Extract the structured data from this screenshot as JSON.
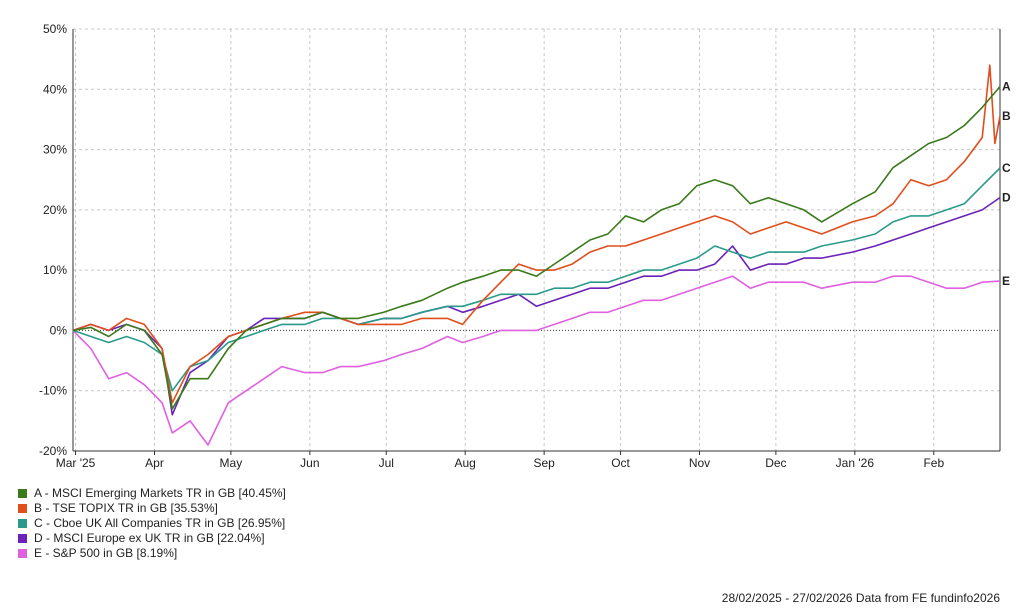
{
  "chart_data": {
    "type": "line",
    "y_unit": "%",
    "ylim": [
      -20,
      50
    ],
    "y_ticks": [
      "50%",
      "40%",
      "30%",
      "20%",
      "10%",
      "0%",
      "-10%",
      "-20%"
    ],
    "x_ticks": [
      "Mar '25",
      "Apr",
      "May",
      "Jun",
      "Jul",
      "Aug",
      "Sep",
      "Oct",
      "Nov",
      "Dec",
      "Jan '26",
      "Feb"
    ],
    "grid": true,
    "legend_position": "bottom-left",
    "series": [
      {
        "name": "A - MSCI Emerging Markets TR in GB [40.45%]",
        "end_label": "A",
        "color": "#3a7a1a",
        "points": [
          [
            "2025-02-28",
            0
          ],
          [
            "2025-03-07",
            0.5
          ],
          [
            "2025-03-14",
            -1
          ],
          [
            "2025-03-21",
            1
          ],
          [
            "2025-03-28",
            0
          ],
          [
            "2025-04-04",
            -4
          ],
          [
            "2025-04-08",
            -13
          ],
          [
            "2025-04-15",
            -8
          ],
          [
            "2025-04-22",
            -8
          ],
          [
            "2025-04-30",
            -3
          ],
          [
            "2025-05-07",
            0
          ],
          [
            "2025-05-14",
            1
          ],
          [
            "2025-05-21",
            2
          ],
          [
            "2025-05-30",
            2
          ],
          [
            "2025-06-06",
            3
          ],
          [
            "2025-06-13",
            2
          ],
          [
            "2025-06-20",
            2
          ],
          [
            "2025-06-30",
            3
          ],
          [
            "2025-07-07",
            4
          ],
          [
            "2025-07-15",
            5
          ],
          [
            "2025-07-25",
            7
          ],
          [
            "2025-07-31",
            8
          ],
          [
            "2025-08-08",
            9
          ],
          [
            "2025-08-15",
            10
          ],
          [
            "2025-08-22",
            10
          ],
          [
            "2025-08-29",
            9
          ],
          [
            "2025-09-05",
            11
          ],
          [
            "2025-09-12",
            13
          ],
          [
            "2025-09-19",
            15
          ],
          [
            "2025-09-26",
            16
          ],
          [
            "2025-10-03",
            19
          ],
          [
            "2025-10-10",
            18
          ],
          [
            "2025-10-17",
            20
          ],
          [
            "2025-10-24",
            21
          ],
          [
            "2025-10-31",
            24
          ],
          [
            "2025-11-07",
            25
          ],
          [
            "2025-11-14",
            24
          ],
          [
            "2025-11-21",
            21
          ],
          [
            "2025-11-28",
            22
          ],
          [
            "2025-12-05",
            21
          ],
          [
            "2025-12-12",
            20
          ],
          [
            "2025-12-19",
            18
          ],
          [
            "2025-12-31",
            21
          ],
          [
            "2026-01-09",
            23
          ],
          [
            "2026-01-16",
            27
          ],
          [
            "2026-01-23",
            29
          ],
          [
            "2026-01-30",
            31
          ],
          [
            "2026-02-06",
            32
          ],
          [
            "2026-02-13",
            34
          ],
          [
            "2026-02-20",
            37
          ],
          [
            "2026-02-27",
            40.45
          ]
        ]
      },
      {
        "name": "B - TSE TOPIX TR in GB [35.53%]",
        "end_label": "B",
        "color": "#e04e1c",
        "points": [
          [
            "2025-02-28",
            0
          ],
          [
            "2025-03-07",
            1
          ],
          [
            "2025-03-14",
            0
          ],
          [
            "2025-03-21",
            2
          ],
          [
            "2025-03-28",
            1
          ],
          [
            "2025-04-04",
            -3
          ],
          [
            "2025-04-08",
            -12
          ],
          [
            "2025-04-15",
            -6
          ],
          [
            "2025-04-22",
            -4
          ],
          [
            "2025-04-30",
            -1
          ],
          [
            "2025-05-07",
            0
          ],
          [
            "2025-05-14",
            1
          ],
          [
            "2025-05-21",
            2
          ],
          [
            "2025-05-30",
            3
          ],
          [
            "2025-06-06",
            3
          ],
          [
            "2025-06-13",
            2
          ],
          [
            "2025-06-20",
            1
          ],
          [
            "2025-06-30",
            1
          ],
          [
            "2025-07-07",
            1
          ],
          [
            "2025-07-15",
            2
          ],
          [
            "2025-07-25",
            2
          ],
          [
            "2025-07-31",
            1
          ],
          [
            "2025-08-08",
            5
          ],
          [
            "2025-08-15",
            8
          ],
          [
            "2025-08-22",
            11
          ],
          [
            "2025-08-29",
            10
          ],
          [
            "2025-09-05",
            10
          ],
          [
            "2025-09-12",
            11
          ],
          [
            "2025-09-19",
            13
          ],
          [
            "2025-09-26",
            14
          ],
          [
            "2025-10-03",
            14
          ],
          [
            "2025-10-10",
            15
          ],
          [
            "2025-10-17",
            16
          ],
          [
            "2025-10-24",
            17
          ],
          [
            "2025-10-31",
            18
          ],
          [
            "2025-11-07",
            19
          ],
          [
            "2025-11-14",
            18
          ],
          [
            "2025-11-21",
            16
          ],
          [
            "2025-11-28",
            17
          ],
          [
            "2025-12-05",
            18
          ],
          [
            "2025-12-12",
            17
          ],
          [
            "2025-12-19",
            16
          ],
          [
            "2025-12-31",
            18
          ],
          [
            "2026-01-09",
            19
          ],
          [
            "2026-01-16",
            21
          ],
          [
            "2026-01-23",
            25
          ],
          [
            "2026-01-30",
            24
          ],
          [
            "2026-02-06",
            25
          ],
          [
            "2026-02-13",
            28
          ],
          [
            "2026-02-20",
            32
          ],
          [
            "2026-02-23",
            44
          ],
          [
            "2026-02-25",
            31
          ],
          [
            "2026-02-27",
            35.53
          ]
        ]
      },
      {
        "name": "C - Cboe UK All Companies TR in GB [26.95%]",
        "end_label": "C",
        "color": "#2a9a8a",
        "points": [
          [
            "2025-02-28",
            0
          ],
          [
            "2025-03-07",
            -1
          ],
          [
            "2025-03-14",
            -2
          ],
          [
            "2025-03-21",
            -1
          ],
          [
            "2025-03-28",
            -2
          ],
          [
            "2025-04-04",
            -4
          ],
          [
            "2025-04-08",
            -10
          ],
          [
            "2025-04-15",
            -6
          ],
          [
            "2025-04-22",
            -5
          ],
          [
            "2025-04-30",
            -2
          ],
          [
            "2025-05-07",
            -1
          ],
          [
            "2025-05-14",
            0
          ],
          [
            "2025-05-21",
            1
          ],
          [
            "2025-05-30",
            1
          ],
          [
            "2025-06-06",
            2
          ],
          [
            "2025-06-13",
            2
          ],
          [
            "2025-06-20",
            1
          ],
          [
            "2025-06-30",
            2
          ],
          [
            "2025-07-07",
            2
          ],
          [
            "2025-07-15",
            3
          ],
          [
            "2025-07-25",
            4
          ],
          [
            "2025-07-31",
            4
          ],
          [
            "2025-08-08",
            5
          ],
          [
            "2025-08-15",
            6
          ],
          [
            "2025-08-22",
            6
          ],
          [
            "2025-08-29",
            6
          ],
          [
            "2025-09-05",
            7
          ],
          [
            "2025-09-12",
            7
          ],
          [
            "2025-09-19",
            8
          ],
          [
            "2025-09-26",
            8
          ],
          [
            "2025-10-03",
            9
          ],
          [
            "2025-10-10",
            10
          ],
          [
            "2025-10-17",
            10
          ],
          [
            "2025-10-24",
            11
          ],
          [
            "2025-10-31",
            12
          ],
          [
            "2025-11-07",
            14
          ],
          [
            "2025-11-14",
            13
          ],
          [
            "2025-11-21",
            12
          ],
          [
            "2025-11-28",
            13
          ],
          [
            "2025-12-05",
            13
          ],
          [
            "2025-12-12",
            13
          ],
          [
            "2025-12-19",
            14
          ],
          [
            "2025-12-31",
            15
          ],
          [
            "2026-01-09",
            16
          ],
          [
            "2026-01-16",
            18
          ],
          [
            "2026-01-23",
            19
          ],
          [
            "2026-01-30",
            19
          ],
          [
            "2026-02-06",
            20
          ],
          [
            "2026-02-13",
            21
          ],
          [
            "2026-02-20",
            24
          ],
          [
            "2026-02-27",
            26.95
          ]
        ]
      },
      {
        "name": "D - MSCI Europe ex UK TR in GB [22.04%]",
        "end_label": "D",
        "color": "#6a22b8",
        "points": [
          [
            "2025-02-28",
            0
          ],
          [
            "2025-03-07",
            1
          ],
          [
            "2025-03-14",
            0
          ],
          [
            "2025-03-21",
            1
          ],
          [
            "2025-03-28",
            0
          ],
          [
            "2025-04-04",
            -3
          ],
          [
            "2025-04-08",
            -14
          ],
          [
            "2025-04-15",
            -7
          ],
          [
            "2025-04-22",
            -5
          ],
          [
            "2025-04-30",
            -1
          ],
          [
            "2025-05-07",
            0
          ],
          [
            "2025-05-14",
            2
          ],
          [
            "2025-05-21",
            2
          ],
          [
            "2025-05-30",
            2
          ],
          [
            "2025-06-06",
            3
          ],
          [
            "2025-06-13",
            2
          ],
          [
            "2025-06-20",
            1
          ],
          [
            "2025-06-30",
            2
          ],
          [
            "2025-07-07",
            2
          ],
          [
            "2025-07-15",
            3
          ],
          [
            "2025-07-25",
            4
          ],
          [
            "2025-07-31",
            3
          ],
          [
            "2025-08-08",
            4
          ],
          [
            "2025-08-15",
            5
          ],
          [
            "2025-08-22",
            6
          ],
          [
            "2025-08-29",
            4
          ],
          [
            "2025-09-05",
            5
          ],
          [
            "2025-09-12",
            6
          ],
          [
            "2025-09-19",
            7
          ],
          [
            "2025-09-26",
            7
          ],
          [
            "2025-10-03",
            8
          ],
          [
            "2025-10-10",
            9
          ],
          [
            "2025-10-17",
            9
          ],
          [
            "2025-10-24",
            10
          ],
          [
            "2025-10-31",
            10
          ],
          [
            "2025-11-07",
            11
          ],
          [
            "2025-11-14",
            14
          ],
          [
            "2025-11-21",
            10
          ],
          [
            "2025-11-28",
            11
          ],
          [
            "2025-12-05",
            11
          ],
          [
            "2025-12-12",
            12
          ],
          [
            "2025-12-19",
            12
          ],
          [
            "2025-12-31",
            13
          ],
          [
            "2026-01-09",
            14
          ],
          [
            "2026-01-16",
            15
          ],
          [
            "2026-01-23",
            16
          ],
          [
            "2026-01-30",
            17
          ],
          [
            "2026-02-06",
            18
          ],
          [
            "2026-02-13",
            19
          ],
          [
            "2026-02-20",
            20
          ],
          [
            "2026-02-27",
            22.04
          ]
        ]
      },
      {
        "name": "E - S&P 500 in GB [8.19%]",
        "end_label": "E",
        "color": "#e060e0",
        "points": [
          [
            "2025-02-28",
            0
          ],
          [
            "2025-03-07",
            -3
          ],
          [
            "2025-03-14",
            -8
          ],
          [
            "2025-03-21",
            -7
          ],
          [
            "2025-03-28",
            -9
          ],
          [
            "2025-04-04",
            -12
          ],
          [
            "2025-04-08",
            -17
          ],
          [
            "2025-04-15",
            -15
          ],
          [
            "2025-04-22",
            -19
          ],
          [
            "2025-04-30",
            -12
          ],
          [
            "2025-05-07",
            -10
          ],
          [
            "2025-05-14",
            -8
          ],
          [
            "2025-05-21",
            -6
          ],
          [
            "2025-05-30",
            -7
          ],
          [
            "2025-06-06",
            -7
          ],
          [
            "2025-06-13",
            -6
          ],
          [
            "2025-06-20",
            -6
          ],
          [
            "2025-06-30",
            -5
          ],
          [
            "2025-07-07",
            -4
          ],
          [
            "2025-07-15",
            -3
          ],
          [
            "2025-07-25",
            -1
          ],
          [
            "2025-07-31",
            -2
          ],
          [
            "2025-08-08",
            -1
          ],
          [
            "2025-08-15",
            0
          ],
          [
            "2025-08-22",
            0
          ],
          [
            "2025-08-29",
            0
          ],
          [
            "2025-09-05",
            1
          ],
          [
            "2025-09-12",
            2
          ],
          [
            "2025-09-19",
            3
          ],
          [
            "2025-09-26",
            3
          ],
          [
            "2025-10-03",
            4
          ],
          [
            "2025-10-10",
            5
          ],
          [
            "2025-10-17",
            5
          ],
          [
            "2025-10-24",
            6
          ],
          [
            "2025-10-31",
            7
          ],
          [
            "2025-11-07",
            8
          ],
          [
            "2025-11-14",
            9
          ],
          [
            "2025-11-21",
            7
          ],
          [
            "2025-11-28",
            8
          ],
          [
            "2025-12-05",
            8
          ],
          [
            "2025-12-12",
            8
          ],
          [
            "2025-12-19",
            7
          ],
          [
            "2025-12-31",
            8
          ],
          [
            "2026-01-09",
            8
          ],
          [
            "2026-01-16",
            9
          ],
          [
            "2026-01-23",
            9
          ],
          [
            "2026-01-30",
            8
          ],
          [
            "2026-02-06",
            7
          ],
          [
            "2026-02-13",
            7
          ],
          [
            "2026-02-20",
            8
          ],
          [
            "2026-02-27",
            8.19
          ]
        ]
      }
    ]
  },
  "footer": {
    "text": "28/02/2025 - 27/02/2026 Data from FE fundinfo2026"
  }
}
